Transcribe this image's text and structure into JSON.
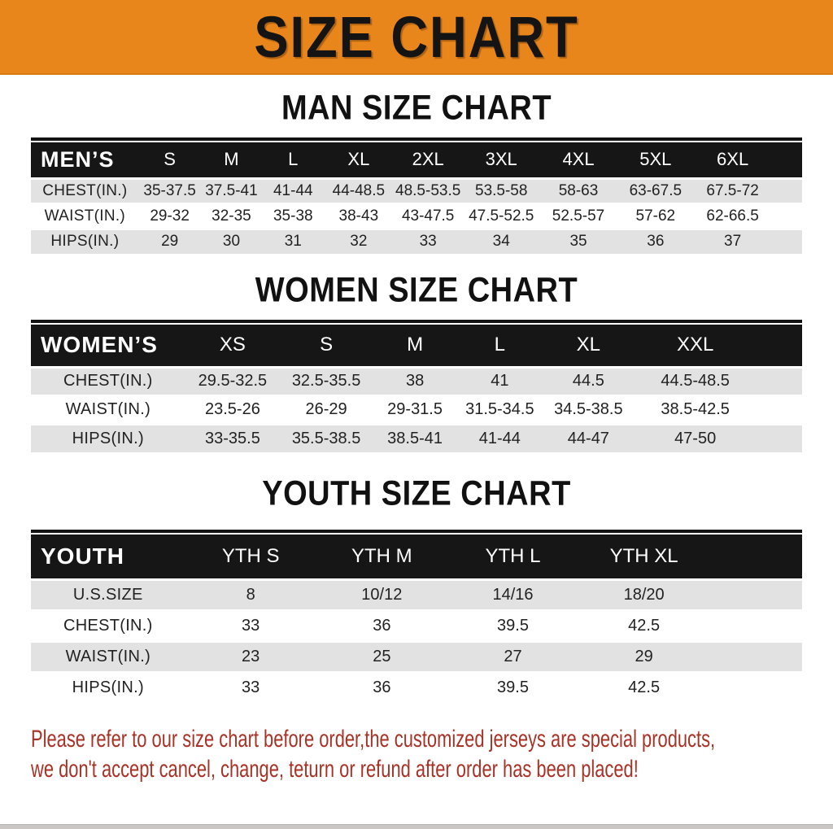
{
  "banner": {
    "title": "SIZE CHART"
  },
  "theme": {
    "banner_bg": "#E8861C",
    "banner_text": "#141414",
    "band_bg": "#161616",
    "row_alt_bg": "#E2E2E2",
    "notice_color": "#A93226"
  },
  "chart_data": [
    {
      "type": "table",
      "title": "MAN SIZE CHART",
      "corner_label": "MEN’S",
      "columns": [
        "S",
        "M",
        "L",
        "XL",
        "2XL",
        "3XL",
        "4XL",
        "5XL",
        "6XL"
      ],
      "rows": [
        {
          "label": "CHEST(IN.)",
          "values": [
            "35-37.5",
            "37.5-41",
            "41-44",
            "44-48.5",
            "48.5-53.5",
            "53.5-58",
            "58-63",
            "63-67.5",
            "67.5-72"
          ]
        },
        {
          "label": "WAIST(IN.)",
          "values": [
            "29-32",
            "32-35",
            "35-38",
            "38-43",
            "43-47.5",
            "47.5-52.5",
            "52.5-57",
            "57-62",
            "62-66.5"
          ]
        },
        {
          "label": "HIPS(IN.)",
          "values": [
            "29",
            "30",
            "31",
            "32",
            "33",
            "34",
            "35",
            "36",
            "37"
          ]
        }
      ]
    },
    {
      "type": "table",
      "title": "WOMEN SIZE CHART",
      "corner_label": "WOMEN’S",
      "columns": [
        "XS",
        "S",
        "M",
        "L",
        "XL",
        "XXL"
      ],
      "rows": [
        {
          "label": "CHEST(IN.)",
          "values": [
            "29.5-32.5",
            "32.5-35.5",
            "38",
            "41",
            "44.5",
            "44.5-48.5"
          ]
        },
        {
          "label": "WAIST(IN.)",
          "values": [
            "23.5-26",
            "26-29",
            "29-31.5",
            "31.5-34.5",
            "34.5-38.5",
            "38.5-42.5"
          ]
        },
        {
          "label": "HIPS(IN.)",
          "values": [
            "33-35.5",
            "35.5-38.5",
            "38.5-41",
            "41-44",
            "44-47",
            "47-50"
          ]
        }
      ]
    },
    {
      "type": "table",
      "title": "YOUTH SIZE CHART",
      "corner_label": "YOUTH",
      "columns": [
        "YTH S",
        "YTH M",
        "YTH L",
        "YTH XL"
      ],
      "rows": [
        {
          "label": "U.S.SIZE",
          "values": [
            "8",
            "10/12",
            "14/16",
            "18/20"
          ]
        },
        {
          "label": "CHEST(IN.)",
          "values": [
            "33",
            "36",
            "39.5",
            "42.5"
          ]
        },
        {
          "label": "WAIST(IN.)",
          "values": [
            "23",
            "25",
            "27",
            "29"
          ]
        },
        {
          "label": "HIPS(IN.)",
          "values": [
            "33",
            "36",
            "39.5",
            "42.5"
          ]
        }
      ]
    }
  ],
  "notice": {
    "line1": "Please refer to our size chart before order,the customized jerseys are special products,",
    "line2": "we don't accept cancel, change, teturn or refund after order has been placed!"
  }
}
